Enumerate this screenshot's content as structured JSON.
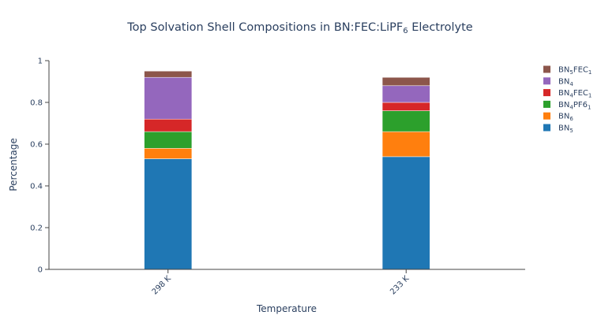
{
  "chart_data": {
    "type": "bar",
    "stacked": true,
    "title": {
      "prefix": "Top Solvation Shell Compositions in BN:FEC:LiPF",
      "subscript": "6",
      "suffix": " Electrolyte"
    },
    "xlabel": "Temperature",
    "ylabel": "Percentage",
    "categories": [
      "298 K",
      "233 K"
    ],
    "ylim": [
      0,
      1
    ],
    "yticks": [
      "0",
      "0.2",
      "0.4",
      "0.6",
      "0.8",
      "1"
    ],
    "ytick_values": [
      0,
      0.2,
      0.4,
      0.6,
      0.8,
      1
    ],
    "grid": false,
    "legend_position": "top-right",
    "series": [
      {
        "base": "BN",
        "sub": "5",
        "tail": "",
        "tail_sub": "",
        "color": "#1f77b4",
        "values": [
          0.53,
          0.54
        ]
      },
      {
        "base": "BN",
        "sub": "6",
        "tail": "",
        "tail_sub": "",
        "color": "#ff7f0e",
        "values": [
          0.05,
          0.12
        ]
      },
      {
        "base": "BN",
        "sub": "4",
        "tail": "PF6",
        "tail_sub": "1",
        "color": "#2ca02c",
        "values": [
          0.08,
          0.1
        ]
      },
      {
        "base": "BN",
        "sub": "4",
        "tail": "FEC",
        "tail_sub": "1",
        "color": "#d62728",
        "values": [
          0.06,
          0.04
        ]
      },
      {
        "base": "BN",
        "sub": "4",
        "tail": "",
        "tail_sub": "",
        "color": "#9467bd",
        "values": [
          0.2,
          0.08
        ]
      },
      {
        "base": "BN",
        "sub": "5",
        "tail": "FEC",
        "tail_sub": "1",
        "color": "#8c564b",
        "values": [
          0.03,
          0.04
        ]
      }
    ]
  }
}
